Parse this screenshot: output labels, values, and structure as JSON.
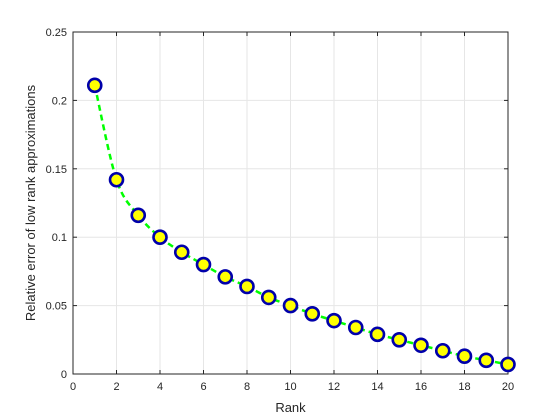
{
  "chart_data": {
    "type": "line",
    "title": "",
    "xlabel": "Rank",
    "ylabel": "Relative error of low rank approximations",
    "xlim": [
      0,
      20
    ],
    "ylim": [
      0,
      0.25
    ],
    "x_ticks": [
      0,
      2,
      4,
      6,
      8,
      10,
      12,
      14,
      16,
      18,
      20
    ],
    "y_ticks": [
      0,
      0.05,
      0.1,
      0.15,
      0.2,
      0.25
    ],
    "x_tick_labels": [
      "0",
      "2",
      "4",
      "6",
      "8",
      "10",
      "12",
      "14",
      "16",
      "18",
      "20"
    ],
    "y_tick_labels": [
      "0",
      "0.05",
      "0.1",
      "0.15",
      "0.2",
      "0.25"
    ],
    "grid": true,
    "series": [
      {
        "x": [
          1,
          2,
          3,
          4,
          5,
          6,
          7,
          8,
          9,
          10,
          11,
          12,
          13,
          14,
          15,
          16,
          17,
          18,
          19,
          20
        ],
        "values": [
          0.211,
          0.142,
          0.116,
          0.1,
          0.089,
          0.08,
          0.071,
          0.064,
          0.056,
          0.05,
          0.044,
          0.039,
          0.034,
          0.029,
          0.025,
          0.021,
          0.017,
          0.013,
          0.01,
          0.007
        ],
        "line_color": "#00ff00",
        "line_style": "dashed",
        "marker": "circle",
        "marker_edge_color": "#0000aa",
        "marker_face_color": "#ffff00"
      }
    ]
  }
}
